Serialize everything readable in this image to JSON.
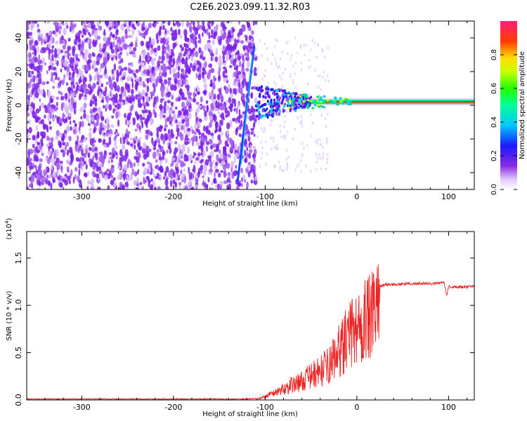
{
  "chart_data": [
    {
      "type": "heatmap",
      "title": "C2E6.2023.099.11.32.R03",
      "xlabel": "Height of straight line (km)",
      "ylabel": "Frequency (Hz)",
      "xlim": [
        -360,
        128
      ],
      "ylim": [
        -50,
        50
      ],
      "x_ticks": [
        -300,
        -200,
        -100,
        0,
        100
      ],
      "y_ticks": [
        -40,
        -20,
        0,
        20,
        40
      ],
      "colorbar": {
        "label": "Normalized spectral amplitude",
        "range": [
          0,
          1
        ],
        "ticks": [
          "0.0",
          "0.2",
          "0.4",
          "0.6",
          "0.8"
        ],
        "colormap": "rainbow"
      },
      "features": {
        "noise_region_x": [
          -360,
          -110
        ],
        "carrier_line": {
          "x_start": -50,
          "x_end": 128,
          "frequency": 2
        },
        "streak": {
          "x_start": -130,
          "x_end": -112,
          "frequency_start": -45,
          "frequency_end": 35
        }
      }
    },
    {
      "type": "line",
      "xlabel": "Height of straight line (km)",
      "ylabel": "SNR (10 * v/v)",
      "y_scale_label": "(x10",
      "y_scale_exponent": "4",
      "y_scale_suffix": ")",
      "xlim": [
        -360,
        128
      ],
      "ylim": [
        0,
        1.78
      ],
      "x_ticks": [
        -300,
        -200,
        -100,
        0,
        100
      ],
      "y_ticks": [
        "0.0",
        "0.5",
        "1.0",
        "1.5"
      ],
      "color": "#ee2222",
      "x": [
        -360,
        -300,
        -200,
        -120,
        -105,
        -95,
        -80,
        -70,
        -60,
        -50,
        -40,
        -30,
        -20,
        -15,
        -10,
        -5,
        0,
        5,
        8,
        10,
        15,
        20,
        25,
        30,
        40,
        60,
        80,
        95,
        98,
        100,
        110,
        128
      ],
      "values": [
        0.01,
        0.01,
        0.01,
        0.01,
        0.02,
        0.07,
        0.14,
        0.2,
        0.24,
        0.31,
        0.37,
        0.45,
        0.62,
        0.72,
        0.78,
        0.87,
        0.93,
        0.97,
        1.05,
        1.02,
        1.05,
        1.12,
        1.2,
        1.22,
        1.22,
        1.23,
        1.23,
        1.24,
        1.1,
        1.2,
        1.19,
        1.2
      ]
    }
  ]
}
